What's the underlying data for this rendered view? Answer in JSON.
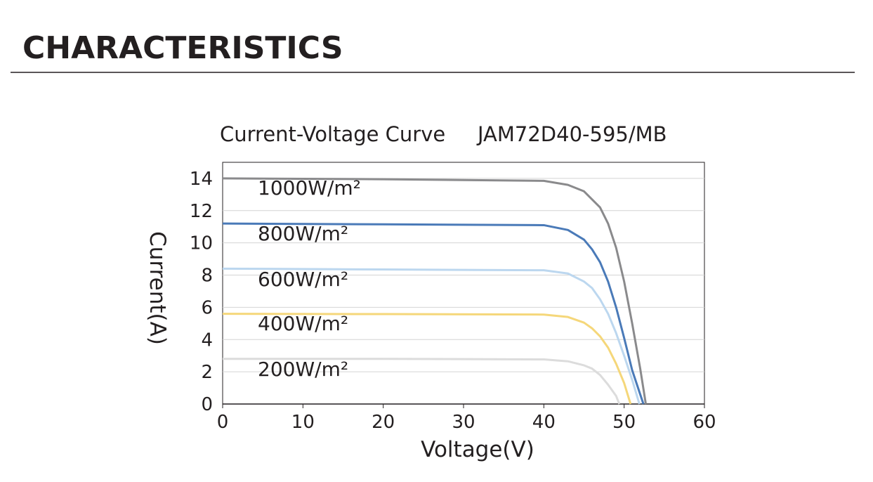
{
  "header": {
    "title": "CHARACTERISTICS"
  },
  "chart_data": {
    "type": "line",
    "title": "Current-Voltage Curve",
    "subtitle": "JAM72D40-595/MB",
    "x_label": "Voltage(V)",
    "y_label": "Current(A)",
    "xlim": [
      0,
      60
    ],
    "xticks": [
      0,
      10,
      20,
      30,
      40,
      50,
      60
    ],
    "ylim": [
      0,
      15
    ],
    "yticks": [
      0,
      2,
      4,
      6,
      8,
      10,
      12,
      14
    ],
    "grid": true,
    "series": [
      {
        "name": "1000W/m²",
        "color": "#8a8a8c",
        "x": [
          0,
          20,
          40,
          43,
          45,
          47,
          48,
          49,
          50,
          51,
          52,
          52.7
        ],
        "values": [
          14.0,
          13.95,
          13.85,
          13.6,
          13.2,
          12.2,
          11.2,
          9.7,
          7.6,
          5.0,
          2.2,
          0
        ]
      },
      {
        "name": "800W/m²",
        "color": "#4a7ab8",
        "x": [
          0,
          20,
          40,
          43,
          45,
          46,
          47,
          48,
          49,
          50,
          51,
          52.4
        ],
        "values": [
          11.2,
          11.15,
          11.1,
          10.8,
          10.2,
          9.6,
          8.8,
          7.6,
          6.0,
          4.1,
          2.1,
          0
        ]
      },
      {
        "name": "600W/m²",
        "color": "#bcd7ef",
        "x": [
          0,
          20,
          40,
          43,
          45,
          46,
          47,
          48,
          49,
          50,
          51,
          51.9
        ],
        "values": [
          8.4,
          8.35,
          8.3,
          8.1,
          7.6,
          7.2,
          6.5,
          5.6,
          4.4,
          3.0,
          1.5,
          0
        ]
      },
      {
        "name": "400W/m²",
        "color": "#f5d77a",
        "x": [
          0,
          20,
          40,
          43,
          45,
          46,
          47,
          48,
          49,
          50,
          50.8
        ],
        "values": [
          5.6,
          5.58,
          5.55,
          5.4,
          5.05,
          4.7,
          4.2,
          3.5,
          2.5,
          1.3,
          0
        ]
      },
      {
        "name": "200W/m²",
        "color": "#dcdcdc",
        "x": [
          0,
          20,
          40,
          43,
          45,
          46,
          47,
          48,
          49,
          49.4
        ],
        "values": [
          2.8,
          2.8,
          2.77,
          2.65,
          2.4,
          2.2,
          1.8,
          1.2,
          0.5,
          0
        ]
      }
    ]
  }
}
